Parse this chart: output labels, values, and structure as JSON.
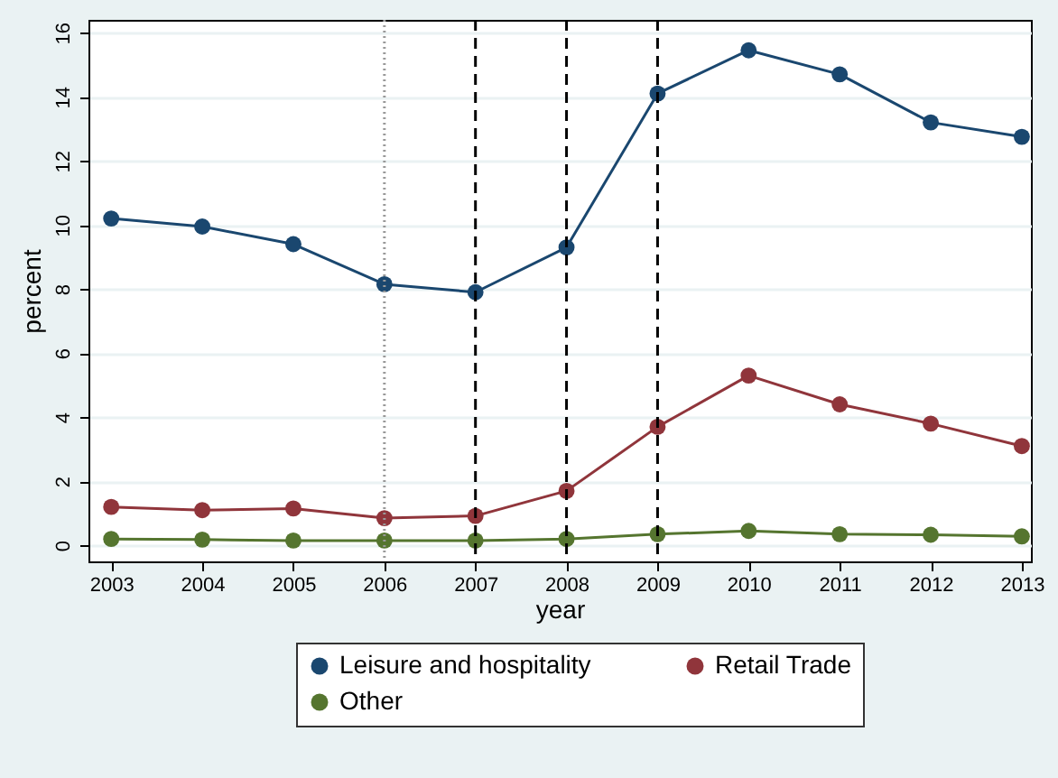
{
  "chart_data": {
    "type": "line",
    "xlabel": "year",
    "ylabel": "percent",
    "x": [
      2003,
      2004,
      2005,
      2006,
      2007,
      2008,
      2009,
      2010,
      2011,
      2012,
      2013
    ],
    "series": [
      {
        "name": "Leisure and hospitality",
        "color": "#1a476f",
        "values": [
          10.2,
          9.95,
          9.4,
          8.15,
          7.9,
          9.3,
          14.1,
          15.45,
          14.7,
          13.2,
          12.75
        ]
      },
      {
        "name": "Retail Trade",
        "color": "#90353b",
        "values": [
          1.2,
          1.1,
          1.15,
          0.85,
          0.92,
          1.7,
          3.7,
          5.3,
          4.4,
          3.8,
          3.1
        ]
      },
      {
        "name": "Other",
        "color": "#55752f",
        "values": [
          0.2,
          0.18,
          0.15,
          0.15,
          0.15,
          0.2,
          0.35,
          0.45,
          0.35,
          0.33,
          0.28
        ]
      }
    ],
    "xlim": [
      2002.75,
      2013.1
    ],
    "xticks": [
      2003,
      2004,
      2005,
      2006,
      2007,
      2008,
      2009,
      2010,
      2011,
      2012,
      2013
    ],
    "ylim": [
      -0.5,
      16.4
    ],
    "yticks": [
      0,
      2,
      4,
      6,
      8,
      10,
      12,
      14,
      16
    ],
    "ref_lines": [
      {
        "axis": "x",
        "value": 2006,
        "color": "#999999",
        "line_style": "dotted"
      },
      {
        "axis": "x",
        "value": 2007,
        "color": "#000000",
        "line_style": "dashed"
      },
      {
        "axis": "x",
        "value": 2008,
        "color": "#000000",
        "line_style": "dashed"
      },
      {
        "axis": "x",
        "value": 2009,
        "color": "#000000",
        "line_style": "dashed"
      }
    ],
    "grid": "y",
    "legend": "bottom",
    "marker": "circle",
    "line_style": "solid"
  }
}
